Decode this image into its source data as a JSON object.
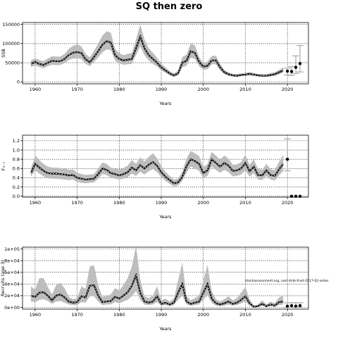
{
  "title": "SQ then zero",
  "source_note": "stockassessment.org, sam-tmb-fcod-2017-02-antes",
  "colors": {
    "band": "#bdbdbd",
    "line": "#000000",
    "dash": "#ffffff",
    "forecast_bar": "#aaaaaa"
  },
  "chart_data": [
    {
      "type": "line",
      "ylabel": "SSB",
      "xlabel": "Years",
      "xlim": [
        1957,
        2025
      ],
      "ylim": [
        -5000,
        155000
      ],
      "xticks": [
        1960,
        1970,
        1980,
        1990,
        2000,
        2010,
        2020
      ],
      "xtick_labels": [
        "1960",
        "1970",
        "1980",
        "1990",
        "2000",
        "2010",
        "2020"
      ],
      "yticks": [
        0,
        50000,
        100000,
        150000
      ],
      "ytick_labels": [
        "0",
        "50000",
        "100000",
        "150000"
      ],
      "grid": true,
      "x": [
        1959,
        1960,
        1961,
        1962,
        1963,
        1964,
        1965,
        1966,
        1967,
        1968,
        1969,
        1970,
        1971,
        1972,
        1973,
        1974,
        1975,
        1976,
        1977,
        1978,
        1979,
        1980,
        1981,
        1982,
        1983,
        1984,
        1985,
        1986,
        1987,
        1988,
        1989,
        1990,
        1991,
        1992,
        1993,
        1994,
        1995,
        1996,
        1997,
        1998,
        1999,
        2000,
        2001,
        2002,
        2003,
        2004,
        2005,
        2006,
        2007,
        2008,
        2009,
        2010,
        2011,
        2012,
        2013,
        2014,
        2015,
        2016,
        2017,
        2018,
        2019
      ],
      "series": [
        {
          "values": [
            47000,
            52000,
            47000,
            44000,
            50000,
            55000,
            54000,
            54000,
            60000,
            70000,
            76000,
            78000,
            75000,
            59000,
            51000,
            65000,
            80000,
            97000,
            106000,
            103000,
            70000,
            60000,
            56000,
            58000,
            60000,
            88000,
            118000,
            88000,
            70000,
            60000,
            50000,
            38000,
            30000,
            22000,
            17000,
            22000,
            50000,
            55000,
            80000,
            76000,
            52000,
            40000,
            42000,
            56000,
            56000,
            38000,
            25000,
            20000,
            17000,
            16000,
            18000,
            19000,
            21000,
            19000,
            17000,
            16000,
            16000,
            18000,
            20000,
            25000,
            30000
          ]
        },
        {
          "role": "upper",
          "values": [
            56000,
            62000,
            57000,
            54000,
            61000,
            67000,
            66000,
            66000,
            73000,
            86000,
            94000,
            98000,
            93000,
            73000,
            64000,
            81000,
            100000,
            121000,
            132000,
            128000,
            87000,
            75000,
            70000,
            73000,
            76000,
            111000,
            150000,
            111000,
            88000,
            76000,
            63000,
            48000,
            38000,
            28000,
            22000,
            29000,
            65000,
            71000,
            100000,
            95000,
            65000,
            50000,
            53000,
            68000,
            68000,
            47000,
            31000,
            25000,
            21000,
            20000,
            22000,
            23000,
            26000,
            23000,
            21000,
            20000,
            20000,
            23000,
            25000,
            31000,
            38000
          ]
        },
        {
          "role": "lower",
          "values": [
            39000,
            43000,
            39000,
            36000,
            41000,
            45000,
            44000,
            44000,
            49000,
            57000,
            61000,
            62000,
            60000,
            47000,
            41000,
            52000,
            64000,
            77000,
            85000,
            83000,
            56000,
            48000,
            45000,
            46000,
            47000,
            70000,
            93000,
            70000,
            56000,
            47000,
            40000,
            30000,
            24000,
            17000,
            13000,
            17000,
            38000,
            42000,
            63000,
            60000,
            41000,
            32000,
            33000,
            46000,
            46000,
            30000,
            20000,
            16000,
            14000,
            13000,
            15000,
            16000,
            17000,
            16000,
            14000,
            13000,
            13000,
            14000,
            16000,
            20000,
            24000
          ]
        }
      ],
      "forecast": {
        "x": [
          2020,
          2021,
          2022,
          2023
        ],
        "mid": [
          28000,
          27000,
          38000,
          48000
        ],
        "low": [
          18000,
          17000,
          22000,
          26000
        ],
        "high": [
          36000,
          40000,
          68000,
          95000
        ]
      }
    },
    {
      "type": "line",
      "ylabel": "F₃₋₇",
      "xlabel": "Years",
      "xlim": [
        1957,
        2025
      ],
      "ylim": [
        -0.02,
        1.32
      ],
      "xticks": [
        1960,
        1970,
        1980,
        1990,
        2000,
        2010,
        2020
      ],
      "xtick_labels": [
        "1960",
        "1970",
        "1980",
        "1990",
        "2000",
        "2010",
        "2020"
      ],
      "yticks": [
        0,
        0.2,
        0.4,
        0.6,
        0.8,
        1.0,
        1.2
      ],
      "ytick_labels": [
        "0.0",
        "0.2",
        "0.4",
        "0.6",
        "0.8",
        "1.0",
        "1.2"
      ],
      "grid": true,
      "x": [
        1959,
        1960,
        1961,
        1962,
        1963,
        1964,
        1965,
        1966,
        1967,
        1968,
        1969,
        1970,
        1971,
        1972,
        1973,
        1974,
        1975,
        1976,
        1977,
        1978,
        1979,
        1980,
        1981,
        1982,
        1983,
        1984,
        1985,
        1986,
        1987,
        1988,
        1989,
        1990,
        1991,
        1992,
        1993,
        1994,
        1995,
        1996,
        1997,
        1998,
        1999,
        2000,
        2001,
        2002,
        2003,
        2004,
        2005,
        2006,
        2007,
        2008,
        2009,
        2010,
        2011,
        2012,
        2013,
        2014,
        2015,
        2016,
        2017,
        2018,
        2019
      ],
      "series": [
        {
          "values": [
            0.5,
            0.7,
            0.62,
            0.55,
            0.5,
            0.49,
            0.49,
            0.48,
            0.47,
            0.45,
            0.46,
            0.4,
            0.38,
            0.36,
            0.37,
            0.38,
            0.48,
            0.6,
            0.57,
            0.5,
            0.48,
            0.45,
            0.48,
            0.52,
            0.62,
            0.56,
            0.67,
            0.6,
            0.68,
            0.74,
            0.66,
            0.52,
            0.42,
            0.35,
            0.28,
            0.3,
            0.42,
            0.65,
            0.8,
            0.76,
            0.7,
            0.5,
            0.56,
            0.8,
            0.72,
            0.64,
            0.72,
            0.66,
            0.55,
            0.56,
            0.6,
            0.72,
            0.54,
            0.64,
            0.46,
            0.45,
            0.56,
            0.46,
            0.44,
            0.58,
            0.7
          ]
        },
        {
          "role": "upper",
          "values": [
            0.6,
            0.88,
            0.78,
            0.7,
            0.64,
            0.62,
            0.62,
            0.61,
            0.6,
            0.57,
            0.58,
            0.51,
            0.48,
            0.46,
            0.47,
            0.48,
            0.6,
            0.73,
            0.7,
            0.62,
            0.6,
            0.57,
            0.61,
            0.66,
            0.78,
            0.7,
            0.84,
            0.75,
            0.85,
            0.93,
            0.82,
            0.65,
            0.53,
            0.44,
            0.36,
            0.38,
            0.53,
            0.81,
            0.98,
            0.93,
            0.87,
            0.63,
            0.7,
            0.96,
            0.88,
            0.79,
            0.88,
            0.81,
            0.68,
            0.69,
            0.74,
            0.9,
            0.68,
            0.8,
            0.59,
            0.57,
            0.7,
            0.59,
            0.56,
            0.74,
            0.9
          ]
        },
        {
          "role": "lower",
          "values": [
            0.42,
            0.56,
            0.49,
            0.43,
            0.39,
            0.38,
            0.38,
            0.37,
            0.36,
            0.35,
            0.36,
            0.31,
            0.29,
            0.28,
            0.29,
            0.3,
            0.38,
            0.48,
            0.46,
            0.4,
            0.38,
            0.36,
            0.38,
            0.41,
            0.49,
            0.44,
            0.53,
            0.47,
            0.54,
            0.59,
            0.52,
            0.41,
            0.33,
            0.27,
            0.21,
            0.23,
            0.33,
            0.51,
            0.64,
            0.6,
            0.55,
            0.39,
            0.44,
            0.64,
            0.57,
            0.51,
            0.57,
            0.52,
            0.43,
            0.44,
            0.47,
            0.56,
            0.42,
            0.5,
            0.36,
            0.35,
            0.44,
            0.36,
            0.34,
            0.45,
            0.55
          ]
        }
      ],
      "forecast": {
        "x": [
          2020,
          2021,
          2022,
          2023
        ],
        "mid": [
          0.8,
          0.0,
          0.0,
          0.0
        ],
        "low": [
          0.55,
          0.0,
          0.0,
          0.0
        ],
        "high": [
          1.24,
          0.0,
          0.0,
          0.0
        ]
      }
    },
    {
      "type": "line",
      "ylabel": "Recruits (age 3)",
      "xlabel": "Years",
      "xlim": [
        1957,
        2025
      ],
      "ylim": [
        -3000,
        103000
      ],
      "xticks": [
        1960,
        1970,
        1980,
        1990,
        2000,
        2010,
        2020
      ],
      "xtick_labels": [
        "1960",
        "1970",
        "1980",
        "1990",
        "2000",
        "2010",
        "2020"
      ],
      "yticks": [
        0,
        20000,
        40000,
        60000,
        80000,
        100000
      ],
      "ytick_labels": [
        "0e+00",
        "2e+04",
        "4e+04",
        "6e+04",
        "8e+04",
        "1e+05"
      ],
      "grid": true,
      "x": [
        1959,
        1960,
        1961,
        1962,
        1963,
        1964,
        1965,
        1966,
        1967,
        1968,
        1969,
        1970,
        1971,
        1972,
        1973,
        1974,
        1975,
        1976,
        1977,
        1978,
        1979,
        1980,
        1981,
        1982,
        1983,
        1984,
        1985,
        1986,
        1987,
        1988,
        1989,
        1990,
        1991,
        1992,
        1993,
        1994,
        1995,
        1996,
        1997,
        1998,
        1999,
        2000,
        2001,
        2002,
        2003,
        2004,
        2005,
        2006,
        2007,
        2008,
        2009,
        2010,
        2011,
        2012,
        2013,
        2014,
        2015,
        2016,
        2017,
        2018,
        2019
      ],
      "series": [
        {
          "values": [
            20000,
            18000,
            25000,
            26000,
            20000,
            12000,
            20000,
            22000,
            17000,
            10000,
            8000,
            9000,
            19000,
            17000,
            37000,
            38000,
            20000,
            9000,
            10000,
            11000,
            18000,
            15000,
            20000,
            26000,
            37000,
            55000,
            25000,
            10000,
            8000,
            10000,
            19000,
            6000,
            8000,
            5000,
            8000,
            25000,
            40000,
            10000,
            6000,
            8000,
            10000,
            25000,
            40000,
            15000,
            7000,
            5000,
            7000,
            10000,
            6000,
            8000,
            13000,
            19000,
            7000,
            1000,
            2000,
            6000,
            2000,
            5000,
            3000,
            9000,
            10000
          ]
        },
        {
          "role": "upper",
          "values": [
            36000,
            30000,
            50000,
            50000,
            35000,
            22000,
            38000,
            42000,
            33000,
            18000,
            14000,
            16000,
            36000,
            32000,
            70000,
            72000,
            37000,
            18000,
            20000,
            22000,
            33000,
            29000,
            38000,
            50000,
            70000,
            105000,
            48000,
            19000,
            16000,
            20000,
            36000,
            12000,
            15000,
            10000,
            15000,
            46000,
            77000,
            20000,
            12000,
            16000,
            20000,
            46000,
            73000,
            28000,
            14000,
            10000,
            14000,
            19000,
            12000,
            16000,
            25000,
            35000,
            14000,
            3000,
            5000,
            12000,
            5000,
            10000,
            7000,
            17000,
            20000
          ]
        },
        {
          "role": "lower",
          "values": [
            10000,
            9000,
            13000,
            14000,
            11000,
            6000,
            10000,
            11000,
            8000,
            5000,
            4000,
            4000,
            9000,
            8000,
            19000,
            19000,
            10000,
            4000,
            5000,
            5000,
            9000,
            7000,
            10000,
            13000,
            19000,
            28000,
            13000,
            5000,
            4000,
            5000,
            9000,
            3000,
            4000,
            2000,
            4000,
            13000,
            20000,
            5000,
            3000,
            4000,
            5000,
            13000,
            21000,
            8000,
            3000,
            2000,
            3000,
            5000,
            3000,
            4000,
            7000,
            10000,
            3000,
            0,
            1000,
            3000,
            1000,
            2000,
            1000,
            4000,
            5000
          ]
        }
      ],
      "forecast": {
        "x": [
          2020,
          2021,
          2022,
          2023
        ],
        "mid": [
          2000,
          3000,
          2000,
          3000
        ],
        "low": [
          0,
          0,
          0,
          0
        ],
        "high": [
          8000,
          8000,
          8000,
          8000
        ]
      }
    }
  ]
}
